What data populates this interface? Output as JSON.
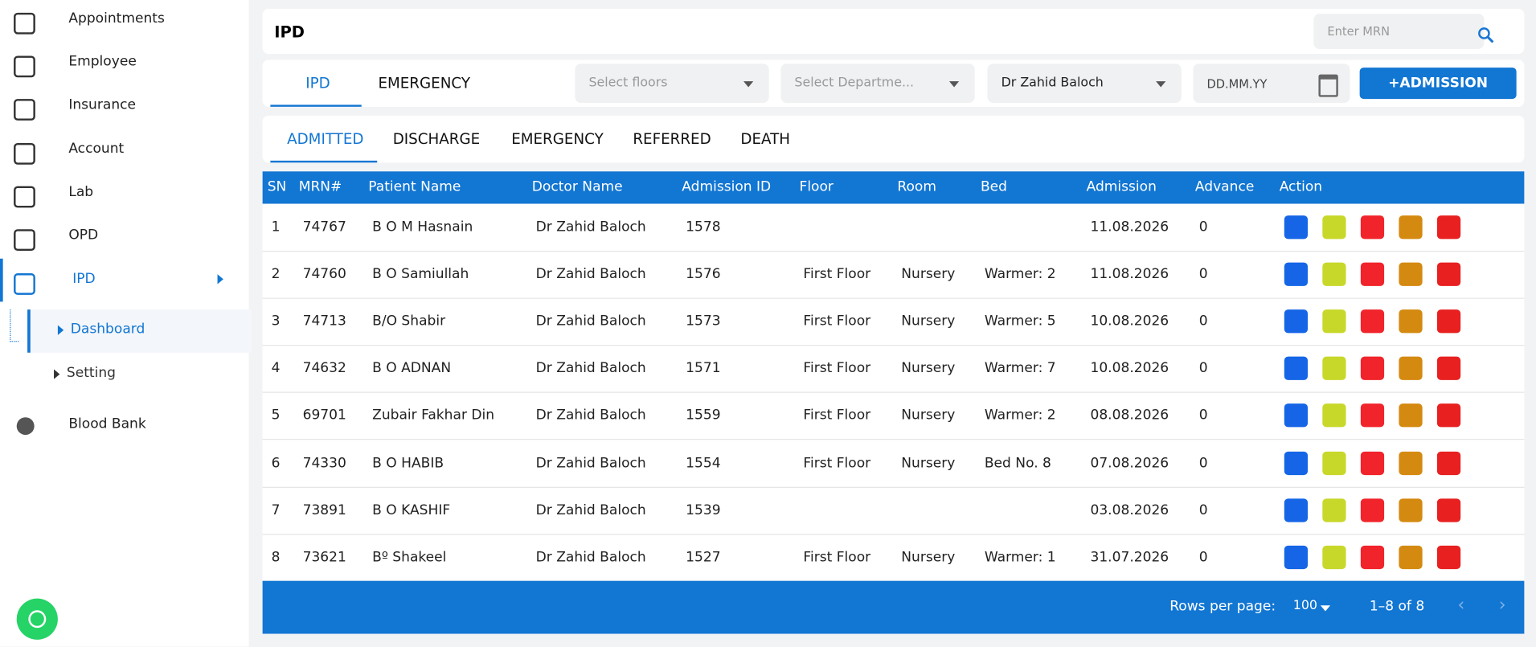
{
  "sidebar": {
    "items": [
      "Appointments",
      "Employee",
      "Insurance",
      "Account",
      "Lab",
      "OPD",
      "IPD"
    ],
    "submenu": [
      "Dashboard",
      "Setting"
    ],
    "bottom_item": "Blood Bank"
  },
  "header": {
    "title": "IPD",
    "search_placeholder": "Enter MRN"
  },
  "top_tabs": [
    "IPD",
    "EMERGENCY"
  ],
  "filters": {
    "floors": "Select floors",
    "department": "Select Departme...",
    "doctor": "Dr Zahid Baloch",
    "date": "DD.MM.YY",
    "add_button": "+ADMISSION"
  },
  "status_tabs": [
    "ADMITTED",
    "DISCHARGE",
    "EMERGENCY",
    "REFERRED",
    "DEATH"
  ],
  "table": {
    "columns": [
      "SN",
      "MRN#",
      "Patient Name",
      "Doctor Name",
      "Admission ID",
      "Floor",
      "Room",
      "Bed",
      "Admission",
      "Advance",
      "Action"
    ],
    "rows": [
      [
        "1",
        "74767",
        "B O M Hasnain",
        "Dr Zahid Baloch",
        "1578",
        null,
        null,
        null,
        "11.08.2026",
        "0"
      ],
      [
        "2",
        "74760",
        "B O Samiullah",
        "Dr Zahid Baloch",
        "1576",
        "First Floor",
        "Nursery",
        "Warmer: 2",
        "11.08.2026",
        "0"
      ],
      [
        "3",
        "74713",
        "B/O Shabir",
        "Dr Zahid Baloch",
        "1573",
        "First Floor",
        "Nursery",
        "Warmer: 5",
        "10.08.2026",
        "0"
      ],
      [
        "4",
        "74632",
        "B O ADNAN",
        "Dr Zahid Baloch",
        "1571",
        "First Floor",
        "Nursery",
        "Warmer: 7",
        "10.08.2026",
        "0"
      ],
      [
        "5",
        "69701",
        "Zubair Fakhar Din",
        "Dr Zahid Baloch",
        "1559",
        "First Floor",
        "Nursery",
        "Warmer: 2",
        "08.08.2026",
        "0"
      ],
      [
        "6",
        "74330",
        "B O HABIB",
        "Dr Zahid Baloch",
        "1554",
        "First Floor",
        "Nursery",
        "Bed No. 8",
        "07.08.2026",
        "0"
      ],
      [
        "7",
        "73891",
        "B O KASHIF",
        "Dr Zahid Baloch",
        "1539",
        null,
        null,
        null,
        "03.08.2026",
        "0"
      ],
      [
        "8",
        "73621",
        "Bº Shakeel",
        "Dr Zahid Baloch",
        "1527",
        "First Floor",
        "Nursery",
        "Warmer: 1",
        "31.07.2026",
        "0"
      ]
    ]
  },
  "footer": {
    "rows_per_page_label": "Rows per page:",
    "rows_per_page": "100",
    "range": "1–8 of 8"
  }
}
